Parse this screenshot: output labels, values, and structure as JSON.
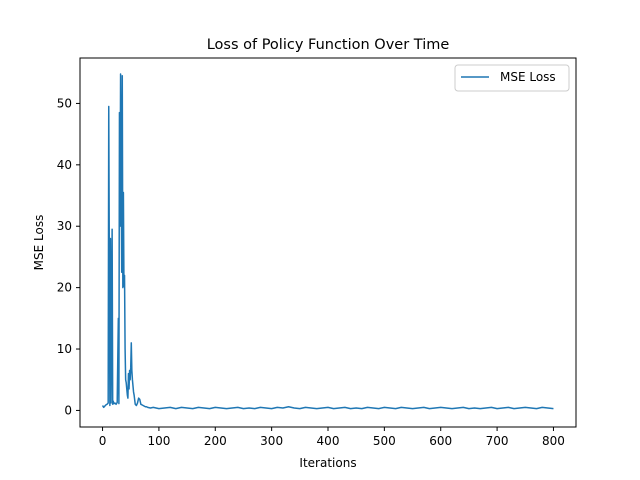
{
  "chart_data": {
    "type": "line",
    "title": "Loss of Policy Function Over Time",
    "xlabel": "Iterations",
    "ylabel": "MSE Loss",
    "xlim": [
      -40,
      840
    ],
    "ylim": [
      -2.7,
      57.4
    ],
    "xticks": [
      0,
      100,
      200,
      300,
      400,
      500,
      600,
      700,
      800
    ],
    "yticks": [
      0,
      10,
      20,
      30,
      40,
      50
    ],
    "grid": false,
    "legend_position": "top-right",
    "series": [
      {
        "name": "MSE Loss",
        "color": "#1f77b4",
        "x": [
          0,
          2,
          4,
          6,
          8,
          10,
          11,
          12,
          13,
          14,
          15,
          16,
          17,
          18,
          19,
          20,
          22,
          24,
          26,
          28,
          29,
          30,
          31,
          32,
          33,
          34,
          35,
          36,
          37,
          38,
          39,
          40,
          41,
          42,
          43,
          44,
          45,
          46,
          47,
          48,
          49,
          50,
          51,
          52,
          53,
          54,
          55,
          56,
          58,
          60,
          62,
          64,
          66,
          68,
          70,
          72,
          74,
          76,
          78,
          80,
          85,
          90,
          95,
          100,
          110,
          120,
          130,
          140,
          150,
          160,
          170,
          180,
          190,
          200,
          210,
          220,
          230,
          240,
          250,
          260,
          270,
          280,
          290,
          300,
          310,
          320,
          330,
          340,
          350,
          360,
          370,
          380,
          390,
          400,
          410,
          420,
          430,
          440,
          450,
          460,
          470,
          480,
          490,
          500,
          510,
          520,
          530,
          540,
          550,
          560,
          570,
          580,
          590,
          600,
          610,
          620,
          630,
          640,
          650,
          660,
          670,
          680,
          690,
          700,
          710,
          720,
          730,
          740,
          750,
          760,
          770,
          780,
          790,
          800
        ],
        "values": [
          0.8,
          0.5,
          0.7,
          0.9,
          1.0,
          1.2,
          49.5,
          25.0,
          0.8,
          28.0,
          1.2,
          15.0,
          29.5,
          1.0,
          1.5,
          1.1,
          1.2,
          1.0,
          1.3,
          15.0,
          1.1,
          48.5,
          30.0,
          54.8,
          40.0,
          22.5,
          54.5,
          20.0,
          35.5,
          20.2,
          22.0,
          10.0,
          5.0,
          4.5,
          3.5,
          2.5,
          2.0,
          6.0,
          3.5,
          6.5,
          5.0,
          7.0,
          11.0,
          6.5,
          5.0,
          4.0,
          3.0,
          2.5,
          1.0,
          0.8,
          1.2,
          2.0,
          1.8,
          1.0,
          0.9,
          0.8,
          0.7,
          0.6,
          0.6,
          0.5,
          0.4,
          0.5,
          0.4,
          0.3,
          0.4,
          0.5,
          0.3,
          0.5,
          0.4,
          0.3,
          0.5,
          0.4,
          0.3,
          0.5,
          0.4,
          0.3,
          0.4,
          0.5,
          0.3,
          0.4,
          0.3,
          0.5,
          0.4,
          0.3,
          0.5,
          0.4,
          0.6,
          0.4,
          0.3,
          0.5,
          0.4,
          0.3,
          0.4,
          0.5,
          0.3,
          0.4,
          0.5,
          0.3,
          0.4,
          0.3,
          0.5,
          0.4,
          0.3,
          0.5,
          0.4,
          0.3,
          0.5,
          0.4,
          0.3,
          0.4,
          0.5,
          0.3,
          0.4,
          0.5,
          0.4,
          0.3,
          0.4,
          0.5,
          0.3,
          0.4,
          0.3,
          0.4,
          0.5,
          0.3,
          0.4,
          0.5,
          0.3,
          0.4,
          0.5,
          0.4,
          0.3,
          0.5,
          0.4,
          0.3
        ]
      }
    ]
  }
}
